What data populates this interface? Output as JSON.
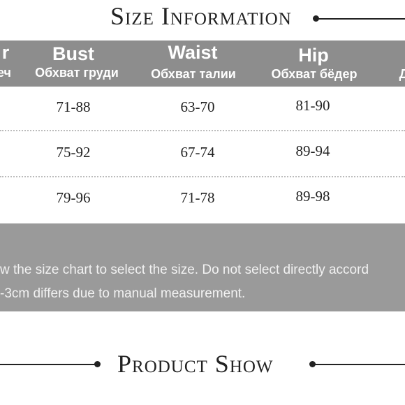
{
  "header": {
    "title": "Size Information"
  },
  "table": {
    "columns": [
      {
        "name": "r",
        "sub": "еч"
      },
      {
        "name": "Bust",
        "sub": "Обхват груди"
      },
      {
        "name": "Waist",
        "sub": "Обхват талии"
      },
      {
        "name": "Hip",
        "sub": "Обхват бёдер"
      },
      {
        "name": null,
        "sub": "Д"
      }
    ],
    "rows": [
      [
        "71-88",
        "63-70",
        "81-90"
      ],
      [
        "75-92",
        "67-74",
        "89-94"
      ],
      [
        "79-96",
        "71-78",
        "89-98"
      ]
    ]
  },
  "note": {
    "lines": [
      "w the size chart to select the size. Do not select directly accord",
      "-3cm differs due to manual measurement."
    ]
  },
  "footer": {
    "title": "Product Show"
  }
}
